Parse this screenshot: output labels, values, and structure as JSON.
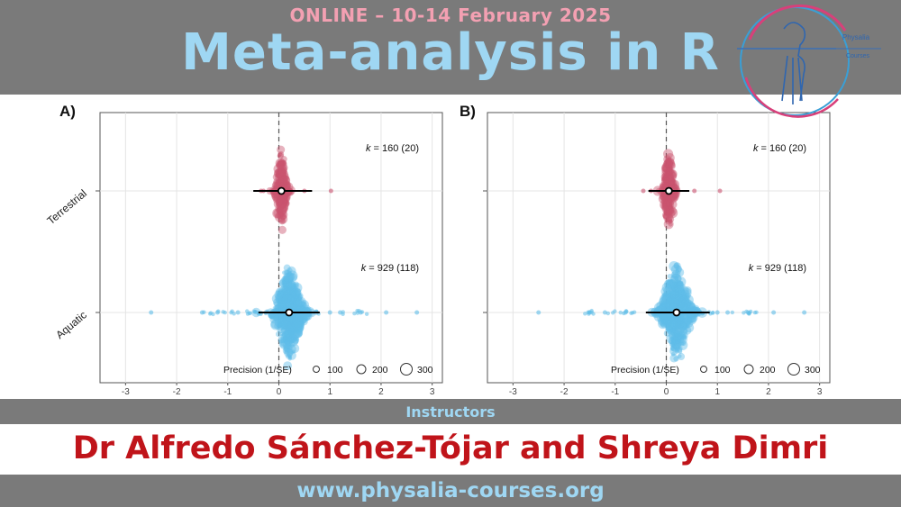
{
  "header": {
    "online_line": "ONLINE – 10-14 February 2025",
    "title": "Meta-analysis in R"
  },
  "logo": {
    "line1": "Physalia",
    "line2": "Courses",
    "icon": "physalia-logo-icon"
  },
  "instructors": {
    "label": "Instructors",
    "names": "Dr Alfredo Sánchez-Tójar and Shreya Dimri"
  },
  "footer": {
    "url": "www.physalia-courses.org"
  },
  "colors": {
    "band": "#7a7a7a",
    "pink": "#f3a0b2",
    "light_blue": "#9fd7f3",
    "names_red": "#c0141a",
    "terrestrial": "#c9546f",
    "aquatic": "#5fbde8"
  },
  "chart_data": [
    {
      "type": "scatter",
      "panel_label": "A)",
      "categories": [
        "Terrestrial",
        "Aquatic"
      ],
      "x_ticks": [
        "-3",
        "-2",
        "-1",
        "0",
        "1",
        "2",
        "3"
      ],
      "xlim": [
        -3.5,
        3.2
      ],
      "reference_line": 0,
      "series": [
        {
          "category": "Terrestrial",
          "annotation_k": "k",
          "annotation_rest": " = 160 (20)",
          "estimate": 0.05,
          "ci": [
            -0.5,
            0.65
          ],
          "spread_sd": 0.08,
          "outliers": [
            -0.35,
            -0.3,
            0.5,
            1.02
          ]
        },
        {
          "category": "Aquatic",
          "annotation_k": "k",
          "annotation_rest": " = 929 (118)",
          "estimate": 0.2,
          "ci": [
            -0.4,
            0.8
          ],
          "spread_sd": 0.2,
          "outliers": [
            -2.5,
            -1.5,
            -1.2,
            -0.8,
            1.0,
            1.2,
            1.6,
            2.1,
            2.7
          ]
        }
      ],
      "legend": {
        "title": "Precision (1/SE)",
        "sizes": [
          "100",
          "200",
          "300"
        ],
        "position": "bottom"
      },
      "grid": true
    },
    {
      "type": "scatter",
      "panel_label": "B)",
      "categories": [
        "Terrestrial",
        "Aquatic"
      ],
      "x_ticks": [
        "-3",
        "-2",
        "-1",
        "0",
        "1",
        "2",
        "3"
      ],
      "xlim": [
        -3.5,
        3.2
      ],
      "reference_line": 0,
      "series": [
        {
          "category": "Terrestrial",
          "annotation_k": "k",
          "annotation_rest": " = 160 (20)",
          "estimate": 0.05,
          "ci": [
            -0.35,
            0.45
          ],
          "spread_sd": 0.08,
          "outliers": [
            -0.45,
            -0.3,
            0.55,
            1.05
          ]
        },
        {
          "category": "Aquatic",
          "annotation_k": "k",
          "annotation_rest": " = 929 (118)",
          "estimate": 0.2,
          "ci": [
            -0.4,
            0.85
          ],
          "spread_sd": 0.2,
          "outliers": [
            -2.5,
            -1.5,
            -1.2,
            -0.8,
            1.0,
            1.2,
            1.6,
            2.1,
            2.7
          ]
        }
      ],
      "legend": {
        "title": "Precision (1/SE)",
        "sizes": [
          "100",
          "200",
          "300"
        ],
        "position": "bottom"
      },
      "grid": true
    }
  ]
}
